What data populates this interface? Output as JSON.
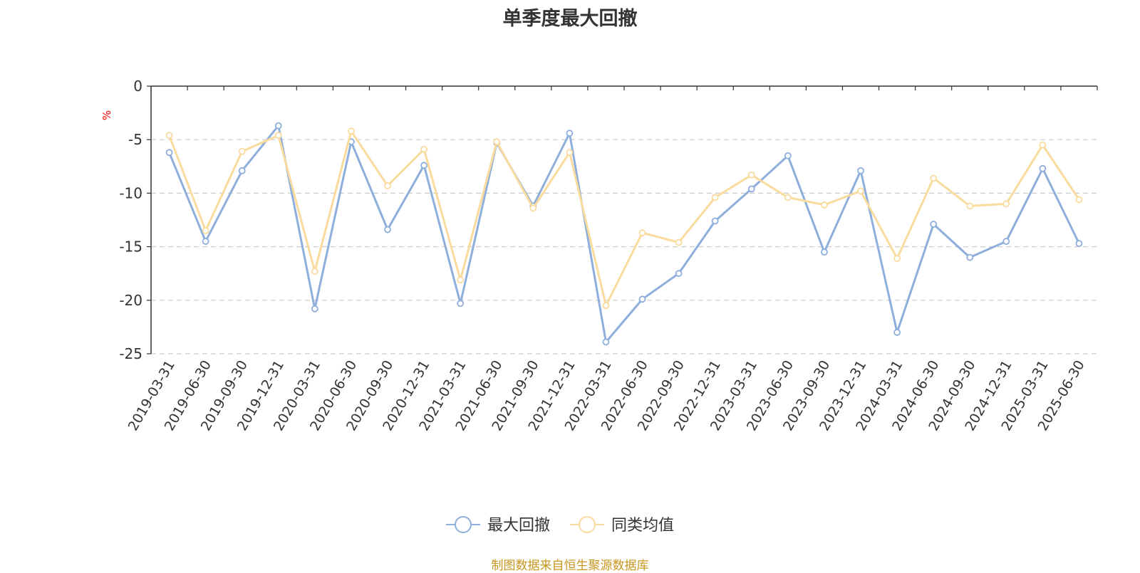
{
  "chart_data": {
    "type": "line",
    "title": "单季度最大回撤",
    "ylabel": "%",
    "ylim": [
      -25,
      0
    ],
    "yticks": [
      0,
      -5,
      -10,
      -15,
      -20,
      -25
    ],
    "grid": true,
    "legend_position": "bottom-center",
    "categories": [
      "2019-03-31",
      "2019-06-30",
      "2019-09-30",
      "2019-12-31",
      "2020-03-31",
      "2020-06-30",
      "2020-09-30",
      "2020-12-31",
      "2021-03-31",
      "2021-06-30",
      "2021-09-30",
      "2021-12-31",
      "2022-03-31",
      "2022-06-30",
      "2022-09-30",
      "2022-12-31",
      "2023-03-31",
      "2023-06-30",
      "2023-09-30",
      "2023-12-31",
      "2024-03-31",
      "2024-06-30",
      "2024-09-30",
      "2024-12-31",
      "2025-03-31",
      "2025-06-30"
    ],
    "series": [
      {
        "name": "最大回撤",
        "color": "#8eaedc",
        "values": [
          -6.2,
          -14.5,
          -7.9,
          -3.7,
          -20.8,
          -5.2,
          -13.4,
          -7.4,
          -20.3,
          -5.3,
          -11.2,
          -4.4,
          -23.9,
          -19.9,
          -17.5,
          -12.6,
          -9.6,
          -6.5,
          -15.5,
          -7.9,
          -23.0,
          -12.9,
          -16.0,
          -14.5,
          -7.7,
          -14.7
        ]
      },
      {
        "name": "同类均值",
        "color": "#fadb9e",
        "values": [
          -4.6,
          -13.5,
          -6.1,
          -4.6,
          -17.3,
          -4.2,
          -9.3,
          -5.9,
          -18.1,
          -5.2,
          -11.4,
          -6.2,
          -20.5,
          -13.7,
          -14.6,
          -10.4,
          -8.3,
          -10.4,
          -11.1,
          -9.8,
          -16.1,
          -8.6,
          -11.2,
          -11.0,
          -5.5,
          -10.6
        ]
      }
    ],
    "source_text": "制图数据来自恒生聚源数据库"
  }
}
